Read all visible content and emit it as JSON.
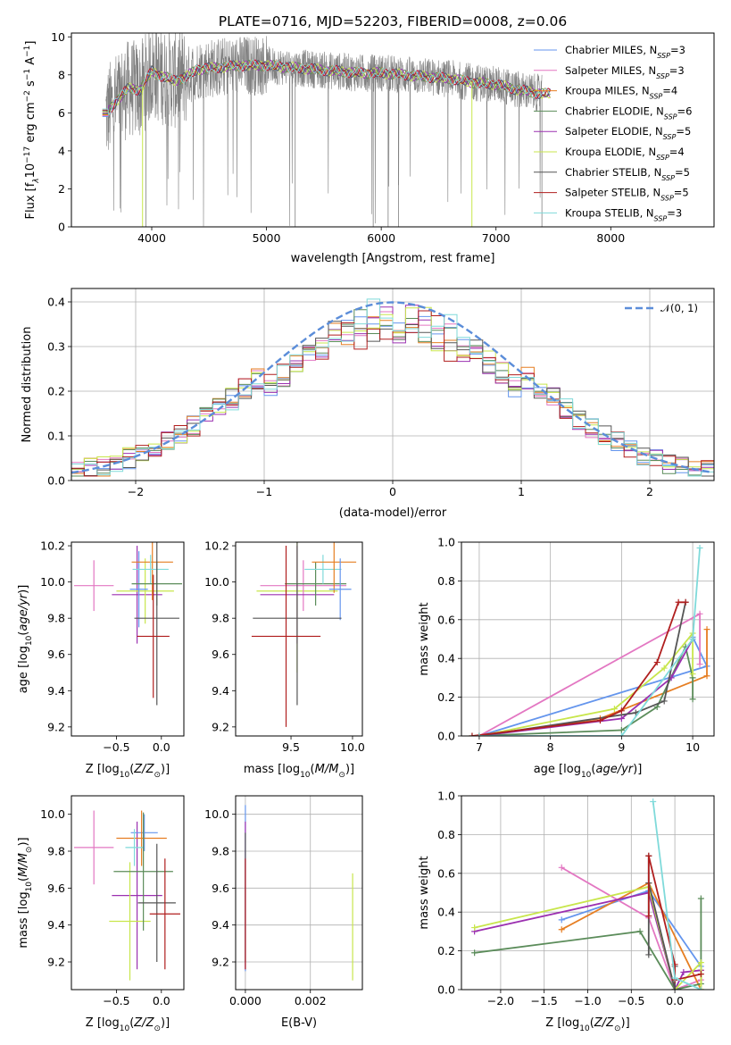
{
  "palette": [
    "#6495ED",
    "#E377C2",
    "#E67E22",
    "#5B8C5A",
    "#9B30B0",
    "#C8E64C",
    "#555555",
    "#B01E1E",
    "#7FDADA"
  ],
  "chart_data": [
    {
      "id": "spectrum",
      "type": "line",
      "title": "PLATE=0716, MJD=52203, FIBERID=0008, z=0.06",
      "xlabel": "wavelength [Angstrom, rest frame]",
      "ylabel": "Flux [f_λ 10^-17 erg cm^-2 s^-1 A^-1]",
      "xlim": [
        3300,
        8900
      ],
      "ylim": [
        0,
        10.2
      ],
      "xticks": [
        4000,
        5000,
        6000,
        7000,
        8000
      ],
      "yticks": [
        0,
        2,
        4,
        6,
        8,
        10
      ],
      "data_color": "#808080",
      "data_range": [
        3600,
        7400
      ],
      "model_range": [
        3570,
        7480
      ],
      "continuum_x": [
        3600,
        3700,
        3800,
        3900,
        4000,
        4100,
        4200,
        4300,
        4400,
        4600,
        4800,
        5000,
        5200,
        5400,
        5600,
        5800,
        6000,
        6200,
        6400,
        6600,
        6800,
        7000,
        7200,
        7400
      ],
      "continuum_y": [
        5.9,
        6.7,
        7.3,
        7.2,
        8.2,
        7.9,
        7.7,
        7.9,
        8.3,
        8.4,
        8.5,
        8.5,
        8.4,
        8.3,
        8.2,
        8.1,
        8.1,
        8.0,
        7.9,
        7.8,
        7.6,
        7.5,
        7.2,
        7.0
      ],
      "legend": [
        {
          "label": "Chabrier MILES, N",
          "sub": "SSP",
          "suffix": "=3",
          "color": "#6495ED"
        },
        {
          "label": "Salpeter MILES, N",
          "sub": "SSP",
          "suffix": "=3",
          "color": "#E377C2"
        },
        {
          "label": "Kroupa MILES, N",
          "sub": "SSP",
          "suffix": "=4",
          "color": "#E67E22"
        },
        {
          "label": "Chabrier ELODIE, N",
          "sub": "SSP",
          "suffix": "=6",
          "color": "#5B8C5A"
        },
        {
          "label": "Salpeter ELODIE, N",
          "sub": "SSP",
          "suffix": "=5",
          "color": "#9B30B0"
        },
        {
          "label": "Kroupa ELODIE, N",
          "sub": "SSP",
          "suffix": "=4",
          "color": "#C8E64C"
        },
        {
          "label": "Chabrier STELIB, N",
          "sub": "SSP",
          "suffix": "=5",
          "color": "#555555"
        },
        {
          "label": "Salpeter STELIB, N",
          "sub": "SSP",
          "suffix": "=5",
          "color": "#B01E1E"
        },
        {
          "label": "Kroupa STELIB, N",
          "sub": "SSP",
          "suffix": "=3",
          "color": "#7FDADA"
        }
      ]
    },
    {
      "id": "residuals",
      "type": "histogram",
      "xlabel": "(data-model)/error",
      "ylabel": "Normed distribution",
      "xlim": [
        -2.5,
        2.5
      ],
      "ylim": [
        0,
        0.43
      ],
      "xticks": [
        -2,
        -1,
        0,
        1,
        2
      ],
      "yticks": [
        0.0,
        0.1,
        0.2,
        0.3,
        0.4
      ],
      "bin_width": 0.1,
      "legend": "𝒩(0, 1)",
      "gaussian": {
        "mean": 0,
        "sigma": 1,
        "color": "#5B8DD9"
      }
    },
    {
      "id": "age-vs-Z",
      "type": "errorbar",
      "xlabel": "Z [log10(Z/Z⊙)]",
      "ylabel": "age [log10(age/yr)]",
      "xlim": [
        -1.0,
        0.25
      ],
      "ylim": [
        9.15,
        10.22
      ],
      "xticks": [
        -0.5,
        0.0
      ],
      "yticks": [
        9.2,
        9.4,
        9.6,
        9.8,
        10.0,
        10.2
      ],
      "points": [
        {
          "x": -0.75,
          "xerr": 0.22,
          "y": 9.98,
          "yerr": 0.14,
          "color": "#E377C2"
        },
        {
          "x": -0.27,
          "xerr": 0.28,
          "y": 9.93,
          "yerr": 0.27,
          "color": "#9B30B0"
        },
        {
          "x": -0.18,
          "xerr": 0.32,
          "y": 9.95,
          "yerr": 0.18,
          "color": "#C8E64C"
        },
        {
          "x": -0.25,
          "xerr": 0.1,
          "y": 9.96,
          "yerr": 0.21,
          "color": "#6495ED"
        },
        {
          "x": -0.1,
          "xerr": 0.23,
          "y": 10.11,
          "yerr": 0.21,
          "color": "#E67E22"
        },
        {
          "x": -0.12,
          "xerr": 0.2,
          "y": 10.07,
          "yerr": 0.08,
          "color": "#7FDADA"
        },
        {
          "x": -0.05,
          "xerr": 0.28,
          "y": 9.99,
          "yerr": 0.12,
          "color": "#5B8C5A"
        },
        {
          "x": -0.05,
          "xerr": 0.25,
          "y": 9.8,
          "yerr": 0.48,
          "color": "#555555"
        },
        {
          "x": -0.09,
          "xerr": 0.18,
          "y": 9.7,
          "yerr": 0.34,
          "color": "#B01E1E"
        }
      ]
    },
    {
      "id": "age-vs-mass",
      "type": "errorbar",
      "xlabel": "mass [log10(M/M⊙)]",
      "xlim": [
        9.05,
        10.08
      ],
      "ylim": [
        9.15,
        10.22
      ],
      "xticks": [
        9.5,
        10.0
      ],
      "yticks": [
        9.2,
        9.4,
        9.6,
        9.8,
        10.0,
        10.2
      ],
      "points": [
        {
          "x": 9.55,
          "xerr": 0.33,
          "y": 9.95,
          "yerr": 0.45,
          "color": "#C8E64C"
        },
        {
          "x": 9.6,
          "xerr": 0.35,
          "y": 9.98,
          "yerr": 0.14,
          "color": "#E377C2"
        },
        {
          "x": 9.55,
          "xerr": 0.3,
          "y": 9.93,
          "yerr": 0.27,
          "color": "#9B30B0"
        },
        {
          "x": 9.7,
          "xerr": 0.25,
          "y": 9.99,
          "yerr": 0.12,
          "color": "#5B8C5A"
        },
        {
          "x": 9.76,
          "xerr": 0.15,
          "y": 10.07,
          "yerr": 0.08,
          "color": "#7FDADA"
        },
        {
          "x": 9.85,
          "xerr": 0.18,
          "y": 10.11,
          "yerr": 0.17,
          "color": "#E67E22"
        },
        {
          "x": 9.9,
          "xerr": 0.09,
          "y": 9.96,
          "yerr": 0.17,
          "color": "#6495ED"
        },
        {
          "x": 9.55,
          "xerr": 0.36,
          "y": 9.8,
          "yerr": 0.48,
          "color": "#555555"
        },
        {
          "x": 9.46,
          "xerr": 0.28,
          "y": 9.7,
          "yerr": 0.5,
          "color": "#B01E1E"
        }
      ]
    },
    {
      "id": "weight-vs-age",
      "type": "line",
      "xlabel": "age [log10(age/yr)]",
      "ylabel": "mass weight",
      "xlim": [
        6.75,
        10.3
      ],
      "ylim": [
        0,
        1.0
      ],
      "xticks": [
        7,
        8,
        9,
        10
      ],
      "yticks": [
        0.0,
        0.2,
        0.4,
        0.6,
        0.8,
        1.0
      ],
      "series": [
        {
          "color": "#6495ED",
          "x": [
            7.0,
            10.2,
            10.0
          ],
          "y": [
            0.0,
            0.36,
            0.51
          ]
        },
        {
          "color": "#E377C2",
          "x": [
            7.0,
            10.1,
            10.1
          ],
          "y": [
            0.0,
            0.63,
            0.37
          ]
        },
        {
          "color": "#E67E22",
          "x": [
            7.0,
            8.7,
            10.2,
            10.2
          ],
          "y": [
            0.0,
            0.09,
            0.31,
            0.55
          ]
        },
        {
          "color": "#5B8C5A",
          "x": [
            6.9,
            9.0,
            9.5,
            9.9,
            10.0,
            10.0
          ],
          "y": [
            0.0,
            0.03,
            0.15,
            0.46,
            0.3,
            0.19
          ]
        },
        {
          "color": "#9B30B0",
          "x": [
            7.0,
            9.0,
            9.7,
            10.0
          ],
          "y": [
            0.0,
            0.09,
            0.3,
            0.5
          ]
        },
        {
          "color": "#C8E64C",
          "x": [
            7.0,
            8.9,
            9.6,
            10.0,
            10.0
          ],
          "y": [
            0.0,
            0.14,
            0.35,
            0.53,
            0.32
          ]
        },
        {
          "color": "#555555",
          "x": [
            7.0,
            9.2,
            9.6,
            9.9
          ],
          "y": [
            0.0,
            0.12,
            0.18,
            0.69
          ]
        },
        {
          "color": "#B01E1E",
          "x": [
            6.9,
            8.7,
            9.0,
            9.5,
            9.8,
            9.9
          ],
          "y": [
            0.0,
            0.08,
            0.13,
            0.38,
            0.69,
            0.69
          ]
        },
        {
          "color": "#7FDADA",
          "x": [
            7.0,
            9.0,
            10.0,
            10.1
          ],
          "y": [
            0.0,
            0.0,
            0.5,
            0.97
          ]
        }
      ]
    },
    {
      "id": "mass-vs-Z",
      "type": "errorbar",
      "xlabel": "Z [log10(Z/Z⊙)]",
      "ylabel": "mass [log10(M/M⊙)]",
      "xlim": [
        -1.0,
        0.25
      ],
      "ylim": [
        9.05,
        10.1
      ],
      "xticks": [
        -0.5,
        0.0
      ],
      "yticks": [
        9.2,
        9.4,
        9.6,
        9.8,
        10.0
      ],
      "points": [
        {
          "x": -0.75,
          "xerr": 0.22,
          "y": 9.82,
          "yerr": 0.2,
          "color": "#E377C2"
        },
        {
          "x": -0.27,
          "xerr": 0.28,
          "y": 9.56,
          "yerr": 0.4,
          "color": "#9B30B0"
        },
        {
          "x": -0.35,
          "xerr": 0.23,
          "y": 9.42,
          "yerr": 0.32,
          "color": "#C8E64C"
        },
        {
          "x": -0.19,
          "xerr": 0.15,
          "y": 9.9,
          "yerr": 0.1,
          "color": "#6495ED"
        },
        {
          "x": -0.22,
          "xerr": 0.28,
          "y": 9.87,
          "yerr": 0.15,
          "color": "#E67E22"
        },
        {
          "x": -0.3,
          "xerr": 0.1,
          "y": 9.82,
          "yerr": 0.1,
          "color": "#7FDADA"
        },
        {
          "x": -0.2,
          "xerr": 0.33,
          "y": 9.69,
          "yerr": 0.32,
          "color": "#5B8C5A"
        },
        {
          "x": -0.05,
          "xerr": 0.21,
          "y": 9.52,
          "yerr": 0.32,
          "color": "#555555"
        },
        {
          "x": 0.04,
          "xerr": 0.17,
          "y": 9.46,
          "yerr": 0.3,
          "color": "#B01E1E"
        }
      ]
    },
    {
      "id": "mass-vs-ebv",
      "type": "errorbar",
      "xlabel": "E(B-V)",
      "xlim": [
        -0.0003,
        0.0036
      ],
      "ylim": [
        9.05,
        10.1
      ],
      "xticks": [
        0.0,
        0.002
      ],
      "yticks": [
        9.2,
        9.4,
        9.6,
        9.8,
        10.0
      ],
      "points": [
        {
          "x": 0.0,
          "xerr": 0,
          "y": 9.6,
          "yerr": 0.45,
          "color": "#6495ED"
        },
        {
          "x": 0.0,
          "xerr": 0,
          "y": 9.56,
          "yerr": 0.4,
          "color": "#9B30B0"
        },
        {
          "x": 0.0,
          "xerr": 0,
          "y": 9.55,
          "yerr": 0.35,
          "color": "#555555"
        },
        {
          "x": 0.0,
          "xerr": 0,
          "y": 9.46,
          "yerr": 0.3,
          "color": "#B01E1E"
        },
        {
          "x": 0.0033,
          "xerr": 0,
          "y": 9.39,
          "yerr": 0.29,
          "color": "#C8E64C"
        }
      ]
    },
    {
      "id": "weight-vs-Z",
      "type": "line",
      "xlabel": "Z [log10(Z/Z⊙)]",
      "ylabel": "mass weight",
      "xlim": [
        -2.45,
        0.45
      ],
      "ylim": [
        0,
        1.0
      ],
      "xticks": [
        -2.0,
        -1.5,
        -1.0,
        -0.5,
        0.0
      ],
      "yticks": [
        0.0,
        0.2,
        0.4,
        0.6,
        0.8,
        1.0
      ],
      "series": [
        {
          "color": "#6495ED",
          "x": [
            -1.3,
            -0.3,
            0.3
          ],
          "y": [
            0.36,
            0.51,
            0.12
          ]
        },
        {
          "color": "#E377C2",
          "x": [
            -1.3,
            -0.3,
            0.0,
            0.3
          ],
          "y": [
            0.63,
            0.37,
            0.0,
            0.05
          ]
        },
        {
          "color": "#E67E22",
          "x": [
            -1.3,
            -0.3,
            0.3,
            0.3
          ],
          "y": [
            0.31,
            0.55,
            0.0,
            0.1
          ]
        },
        {
          "color": "#5B8C5A",
          "x": [
            -2.3,
            -0.4,
            0.0,
            0.3,
            0.3
          ],
          "y": [
            0.19,
            0.3,
            0.0,
            0.03,
            0.47
          ]
        },
        {
          "color": "#9B30B0",
          "x": [
            -2.3,
            -0.3,
            0.0,
            0.1,
            0.3
          ],
          "y": [
            0.3,
            0.5,
            0.0,
            0.09,
            0.1
          ]
        },
        {
          "color": "#C8E64C",
          "x": [
            -2.3,
            -0.3,
            0.0,
            0.3,
            0.3
          ],
          "y": [
            0.32,
            0.53,
            0.0,
            0.14,
            0.0
          ]
        },
        {
          "color": "#555555",
          "x": [
            -0.3,
            -0.3,
            -0.3,
            0.0,
            0.0
          ],
          "y": [
            0.18,
            0.69,
            0.55,
            0.0,
            0.12
          ]
        },
        {
          "color": "#B01E1E",
          "x": [
            -0.3,
            -0.3,
            0.0,
            0.0,
            0.3
          ],
          "y": [
            0.38,
            0.69,
            0.13,
            0.05,
            0.08
          ]
        },
        {
          "color": "#7FDADA",
          "x": [
            -0.25,
            0.0,
            0.3
          ],
          "y": [
            0.97,
            0.06,
            0.0
          ]
        }
      ]
    }
  ]
}
